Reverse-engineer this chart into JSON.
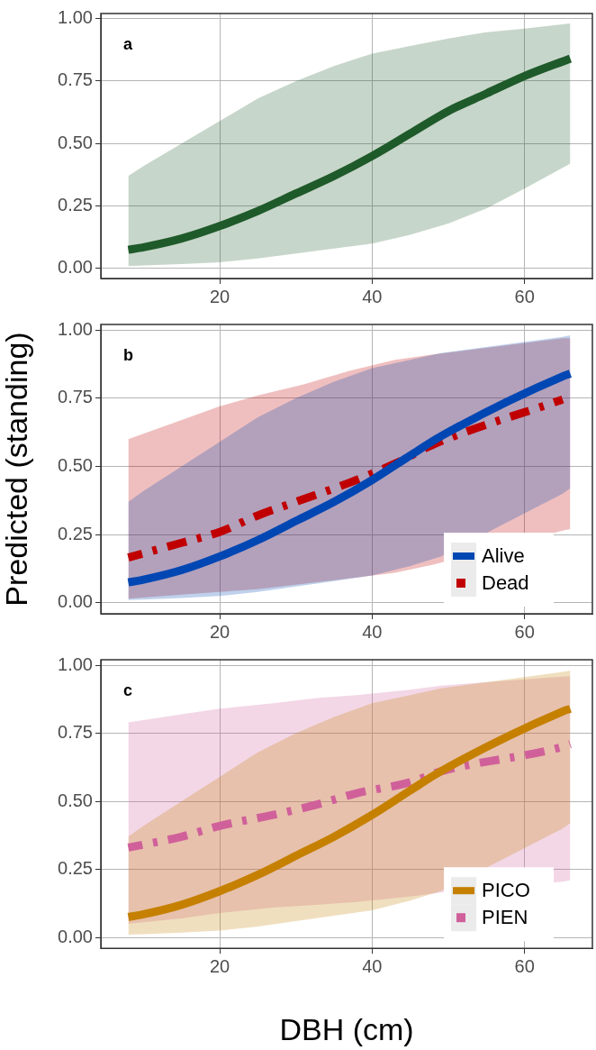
{
  "chart_data": [
    {
      "type": "line",
      "annotations": [
        "a"
      ],
      "xlim": [
        4.4,
        68.9
      ],
      "xticks": [
        20,
        40,
        60
      ],
      "ylim": [
        -0.04,
        1.02
      ],
      "yticks": [
        {
          "value": 0,
          "label": "0.00"
        },
        {
          "value": 0.25,
          "label": "0.25"
        },
        {
          "value": 0.5,
          "label": "0.50"
        },
        {
          "value": 0.75,
          "label": "0.75"
        },
        {
          "value": 1,
          "label": "1.00"
        }
      ],
      "grid": true,
      "legend": false,
      "series": [
        {
          "color": "#1f5a2a",
          "x": [
            8,
            10,
            15,
            20,
            25,
            30,
            35,
            40,
            45,
            50,
            55,
            60,
            66
          ],
          "values": [
            0.075,
            0.085,
            0.12,
            0.17,
            0.23,
            0.3,
            0.37,
            0.45,
            0.54,
            0.63,
            0.7,
            0.77,
            0.84
          ],
          "lower": [
            0.01,
            0.012,
            0.018,
            0.025,
            0.04,
            0.06,
            0.08,
            0.1,
            0.135,
            0.18,
            0.24,
            0.32,
            0.42
          ],
          "upper": [
            0.37,
            0.41,
            0.5,
            0.59,
            0.68,
            0.75,
            0.81,
            0.86,
            0.89,
            0.92,
            0.945,
            0.96,
            0.98
          ]
        }
      ]
    },
    {
      "type": "line",
      "annotations": [
        "b"
      ],
      "ylabel": "Predicted (standing)",
      "xlim": [
        4.4,
        68.9
      ],
      "xticks": [
        20,
        40,
        60
      ],
      "ylim": [
        -0.04,
        1.02
      ],
      "yticks": [
        {
          "value": 0,
          "label": "0.00"
        },
        {
          "value": 0.25,
          "label": "0.25"
        },
        {
          "value": 0.5,
          "label": "0.50"
        },
        {
          "value": 0.75,
          "label": "0.75"
        },
        {
          "value": 1,
          "label": "1.00"
        }
      ],
      "grid": true,
      "legend": "bottom right",
      "series": [
        {
          "name": "Alive",
          "color": "#0047b3",
          "x": [
            8,
            10,
            15,
            20,
            25,
            30,
            35,
            40,
            45,
            49,
            65,
            66
          ],
          "values": [
            0.075,
            0.085,
            0.12,
            0.17,
            0.23,
            0.3,
            0.37,
            0.45,
            0.54,
            0.61,
            0.83,
            0.84
          ],
          "lower": [
            0.01,
            0.012,
            0.018,
            0.025,
            0.04,
            0.06,
            0.08,
            0.1,
            0.135,
            0.17,
            0.4,
            0.42
          ],
          "upper": [
            0.37,
            0.41,
            0.5,
            0.59,
            0.68,
            0.75,
            0.81,
            0.86,
            0.89,
            0.915,
            0.975,
            0.98
          ]
        },
        {
          "name": "Dead",
          "color": "#c00000",
          "line_style": "dashed",
          "x": [
            8,
            15,
            20,
            25,
            31,
            37,
            43,
            48,
            65,
            66
          ],
          "values": [
            0.166,
            0.22,
            0.26,
            0.32,
            0.38,
            0.44,
            0.51,
            0.58,
            0.745,
            null
          ],
          "lower": [
            0.015,
            0.03,
            0.04,
            0.05,
            0.07,
            0.09,
            0.11,
            0.14,
            0.265,
            0.27
          ],
          "upper": [
            0.6,
            0.67,
            0.72,
            0.76,
            0.8,
            0.85,
            0.89,
            0.91,
            0.97,
            0.97
          ]
        }
      ]
    },
    {
      "type": "line",
      "annotations": [
        "c"
      ],
      "xlabel": "DBH (cm)",
      "xlim": [
        4.4,
        68.9
      ],
      "xticks": [
        20,
        40,
        60
      ],
      "ylim": [
        -0.04,
        1.02
      ],
      "yticks": [
        {
          "value": 0,
          "label": "0.00"
        },
        {
          "value": 0.25,
          "label": "0.25"
        },
        {
          "value": 0.5,
          "label": "0.50"
        },
        {
          "value": 0.75,
          "label": "0.75"
        },
        {
          "value": 1,
          "label": "1.00"
        }
      ],
      "grid": true,
      "legend": "bottom right",
      "series": [
        {
          "name": "PICO",
          "color": "#c58000",
          "x": [
            8,
            10,
            15,
            20,
            25,
            30,
            35,
            40,
            45,
            49,
            65,
            66
          ],
          "values": [
            0.075,
            0.085,
            0.12,
            0.17,
            0.23,
            0.3,
            0.37,
            0.45,
            0.54,
            0.61,
            0.83,
            0.84
          ],
          "lower": [
            0.01,
            0.012,
            0.018,
            0.025,
            0.04,
            0.06,
            0.08,
            0.1,
            0.135,
            0.17,
            0.4,
            0.42
          ],
          "upper": [
            0.37,
            0.41,
            0.5,
            0.59,
            0.68,
            0.75,
            0.81,
            0.86,
            0.89,
            0.915,
            0.975,
            0.98
          ]
        },
        {
          "name": "PIEN",
          "color": "#d0609a",
          "line_style": "dashed",
          "x": [
            8,
            15,
            20,
            27,
            33,
            38,
            45,
            49,
            65,
            66
          ],
          "values": [
            0.33,
            0.37,
            0.41,
            0.45,
            0.49,
            0.53,
            0.57,
            0.61,
            0.7,
            0.71
          ],
          "lower": [
            0.05,
            0.07,
            0.09,
            0.11,
            0.12,
            0.13,
            0.15,
            0.165,
            0.205,
            0.21
          ],
          "upper": [
            0.79,
            0.82,
            0.84,
            0.86,
            0.88,
            0.89,
            0.91,
            0.925,
            0.958,
            0.96
          ]
        }
      ]
    }
  ]
}
